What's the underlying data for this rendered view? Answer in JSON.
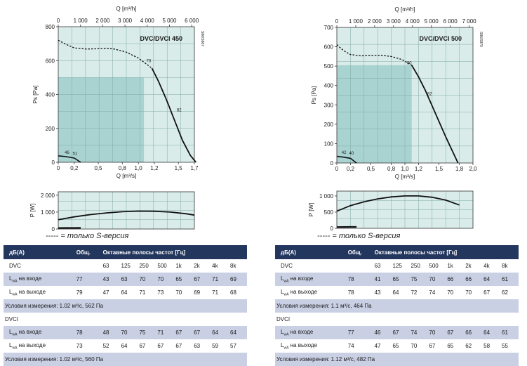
{
  "colors": {
    "plot_bg": "#d9ece9",
    "shade": "#a9d3d1",
    "grid": "#7faaa8",
    "header": "#23365e",
    "band": "#c9d0e4"
  },
  "legend_note": "----- = только S-версия",
  "charts": [
    {
      "model": "DVC/DVCI 450",
      "side_code": "S86/S867",
      "top_axis_label": "Q [m³/h]",
      "top_ticks": [
        "0",
        "1 000",
        "2 000",
        "3 000",
        "4 000",
        "5 000",
        "6 000"
      ],
      "bottom_axis_label": "Q [m³/s]",
      "bottom_ticks": [
        "0",
        "0,2",
        "0,5",
        "0,8",
        "1,0",
        "1,2",
        "1,5",
        "1,7"
      ],
      "ps_label": "Ps [Pa]",
      "ps_ticks": [
        "0",
        "200",
        "400",
        "600",
        "800"
      ],
      "p_label": "P [W]",
      "p_ticks": [
        "0",
        "1 000",
        "2 000"
      ],
      "curve_labels": [
        "78",
        "82",
        "46",
        "51"
      ]
    },
    {
      "model": "DVC/DVCI 500",
      "side_code": "S86/S870",
      "top_axis_label": "Q [m³/h]",
      "top_ticks": [
        "0",
        "1 000",
        "2 000",
        "3 000",
        "4 000",
        "5 000",
        "6 000",
        "7 000"
      ],
      "bottom_axis_label": "Q [m³/s]",
      "bottom_ticks": [
        "0",
        "0,2",
        "0,5",
        "0,8",
        "1,0",
        "1,2",
        "1,5",
        "1,8",
        "2,0"
      ],
      "ps_label": "Ps [Pa]",
      "ps_ticks": [
        "0",
        "100",
        "200",
        "300",
        "400",
        "500",
        "600",
        "700"
      ],
      "p_label": "P [W]",
      "p_ticks": [
        "0",
        "500",
        "1 000"
      ],
      "curve_labels": [
        "80",
        "82",
        "42",
        "40"
      ]
    }
  ],
  "chart_data": [
    {
      "type": "line",
      "title": "DVC/DVCI 450",
      "xlabel": "Q [m³/s]",
      "ylabel": "Ps [Pa]",
      "xlim": [
        0,
        1.7
      ],
      "ylim": [
        0,
        800
      ],
      "series": [
        {
          "style": "dashed",
          "x": [
            0,
            0.1,
            0.2,
            0.35,
            0.5,
            0.6,
            0.7,
            0.85,
            1.0,
            1.1,
            1.17
          ],
          "y": [
            720,
            695,
            675,
            668,
            670,
            672,
            668,
            650,
            615,
            580,
            555
          ]
        },
        {
          "style": "solid",
          "x": [
            1.17,
            1.25,
            1.35,
            1.45,
            1.55,
            1.65,
            1.72
          ],
          "y": [
            555,
            480,
            370,
            250,
            130,
            40,
            0
          ]
        },
        {
          "style": "solid",
          "x": [
            0,
            0.1,
            0.2,
            0.28
          ],
          "y": [
            38,
            33,
            25,
            0
          ]
        }
      ],
      "power": {
        "ylabel": "P [W]",
        "ylim": [
          0,
          2200
        ],
        "series": [
          {
            "x": [
              0,
              0.2,
              0.4,
              0.6,
              0.8,
              1.0,
              1.2,
              1.4,
              1.6,
              1.7
            ],
            "y": [
              550,
              720,
              850,
              950,
              1020,
              1060,
              1050,
              1000,
              900,
              820
            ]
          },
          {
            "x": [
              0,
              0.1,
              0.2,
              0.28
            ],
            "y": [
              60,
              62,
              64,
              65
            ]
          }
        ]
      }
    },
    {
      "type": "line",
      "title": "DVC/DVCI 500",
      "xlabel": "Q [m³/s]",
      "ylabel": "Ps [Pa]",
      "xlim": [
        0,
        2.0
      ],
      "ylim": [
        0,
        700
      ],
      "series": [
        {
          "style": "dashed",
          "x": [
            0,
            0.1,
            0.2,
            0.35,
            0.5,
            0.65,
            0.8,
            0.95,
            1.05,
            1.1
          ],
          "y": [
            610,
            580,
            560,
            553,
            555,
            556,
            550,
            535,
            515,
            505
          ]
        },
        {
          "style": "solid",
          "x": [
            1.1,
            1.2,
            1.3,
            1.4,
            1.5,
            1.6,
            1.7,
            1.78
          ],
          "y": [
            505,
            445,
            375,
            295,
            215,
            135,
            60,
            0
          ]
        },
        {
          "style": "solid",
          "x": [
            0,
            0.1,
            0.2,
            0.29
          ],
          "y": [
            34,
            30,
            24,
            0
          ]
        }
      ],
      "power": {
        "ylabel": "P [W]",
        "ylim": [
          0,
          1150
        ],
        "series": [
          {
            "x": [
              0,
              0.2,
              0.4,
              0.6,
              0.8,
              1.0,
              1.2,
              1.4,
              1.6,
              1.8
            ],
            "y": [
              530,
              700,
              820,
              910,
              970,
              1000,
              1000,
              960,
              870,
              720
            ]
          },
          {
            "x": [
              0,
              0.1,
              0.2,
              0.29
            ],
            "y": [
              40,
              42,
              43,
              44
            ]
          }
        ]
      }
    }
  ],
  "tables": [
    {
      "header": {
        "label": "дБ(А)",
        "total": "Общ.",
        "bands": "Октавные полосы частот [Гц]"
      },
      "freqs": [
        "63",
        "125",
        "250",
        "500",
        "1k",
        "2k",
        "4k",
        "8k"
      ],
      "dvc_title": "DVC",
      "dvc_inlet": {
        "label_main": "L",
        "label_sub": "wA",
        "label_rest": " на входе",
        "total": "77",
        "values": [
          "43",
          "63",
          "70",
          "70",
          "65",
          "67",
          "71",
          "69"
        ]
      },
      "dvc_outlet": {
        "label_main": "L",
        "label_sub": "wA",
        "label_rest": " на выходе",
        "total": "79",
        "values": [
          "47",
          "64",
          "71",
          "73",
          "70",
          "69",
          "71",
          "68"
        ]
      },
      "dvc_conditions": "Условия измерения: 1.02 м³/с, 562 Па",
      "dvci_title": "DVCI",
      "dvci_inlet": {
        "label_main": "L",
        "label_sub": "wA",
        "label_rest": " на входе",
        "total": "78",
        "values": [
          "48",
          "70",
          "75",
          "71",
          "67",
          "67",
          "64",
          "64"
        ]
      },
      "dvci_outlet": {
        "label_main": "L",
        "label_sub": "wA",
        "label_rest": " на выходе",
        "total": "73",
        "values": [
          "52",
          "64",
          "67",
          "67",
          "67",
          "63",
          "59",
          "57"
        ]
      },
      "dvci_conditions": "Условия измерения: 1.02 м³/с, 560 Па"
    },
    {
      "header": {
        "label": "дБ(А)",
        "total": "Общ.",
        "bands": "Октавные полосы частот [Гц]"
      },
      "freqs": [
        "63",
        "125",
        "250",
        "500",
        "1k",
        "2k",
        "4k",
        "8k"
      ],
      "dvc_title": "DVC",
      "dvc_inlet": {
        "label_main": "L",
        "label_sub": "wA",
        "label_rest": " на входе",
        "total": "78",
        "values": [
          "41",
          "65",
          "75",
          "70",
          "66",
          "66",
          "64",
          "61"
        ]
      },
      "dvc_outlet": {
        "label_main": "L",
        "label_sub": "wA",
        "label_rest": " на выходе",
        "total": "78",
        "values": [
          "43",
          "64",
          "72",
          "74",
          "70",
          "70",
          "67",
          "62"
        ]
      },
      "dvc_conditions": "Условия измерения:  1.1 м³/с, 464 Па",
      "dvci_title": "DVCI",
      "dvci_inlet": {
        "label_main": "L",
        "label_sub": "wA",
        "label_rest": " на входе",
        "total": "77",
        "values": [
          "46",
          "67",
          "74",
          "70",
          "67",
          "66",
          "64",
          "61"
        ]
      },
      "dvci_outlet": {
        "label_main": "L",
        "label_sub": "wA",
        "label_rest": " на выходе",
        "total": "74",
        "values": [
          "47",
          "65",
          "70",
          "67",
          "65",
          "62",
          "58",
          "55"
        ]
      },
      "dvci_conditions": "Условия измерения: 1.12 м³/с, 482 Па"
    }
  ]
}
